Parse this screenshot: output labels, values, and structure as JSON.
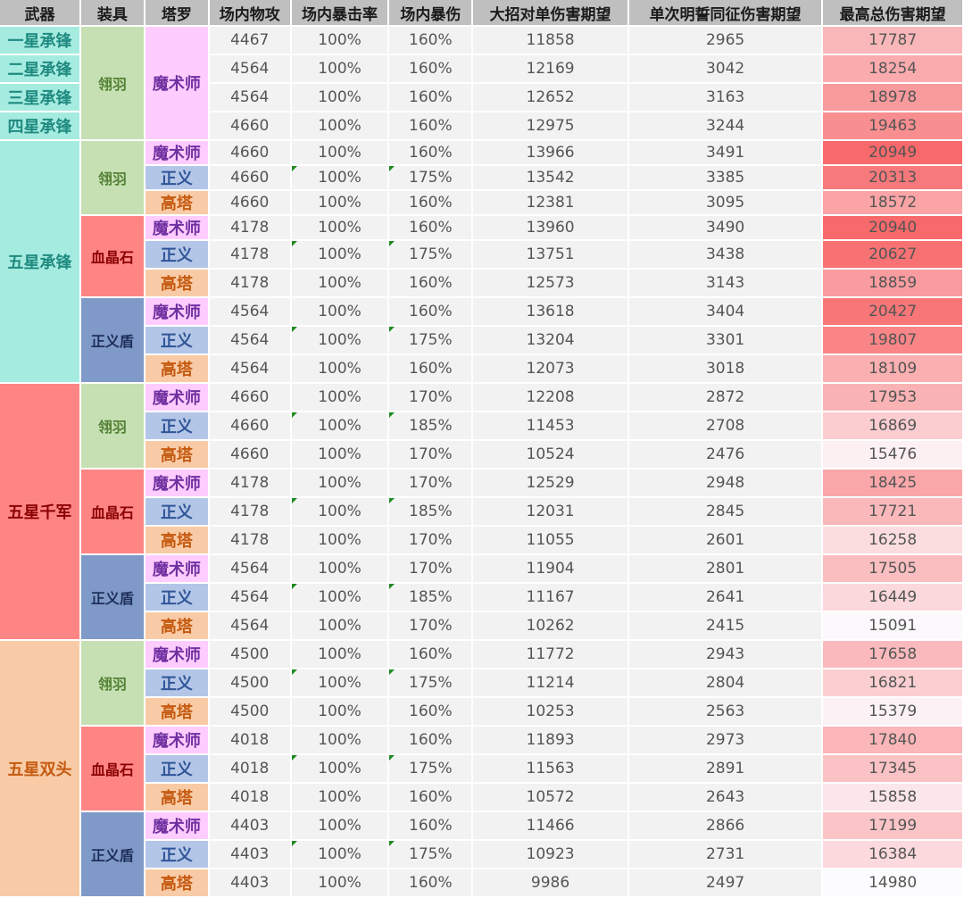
{
  "headers": [
    "武器",
    "装具",
    "塔罗",
    "场内物攻",
    "场内暴击率",
    "场内暴伤",
    "大招对单伤害期望",
    "单次明誓同征伤害期望",
    "最高总伤害期望"
  ],
  "weapon_groups": [
    {
      "label": "一星承锋",
      "rows": 1,
      "bg": "#a6ebe0",
      "fg": "#1f8a80"
    },
    {
      "label": "二星承锋",
      "rows": 1,
      "bg": "#a6ebe0",
      "fg": "#1f8a80"
    },
    {
      "label": "三星承锋",
      "rows": 1,
      "bg": "#a6ebe0",
      "fg": "#1f8a80"
    },
    {
      "label": "四星承锋",
      "rows": 1,
      "bg": "#a6ebe0",
      "fg": "#1f8a80"
    },
    {
      "label": "五星承锋",
      "rows": 9,
      "bg": "#a6ebe0",
      "fg": "#1f8a80"
    },
    {
      "label": "五星千军",
      "rows": 9,
      "bg": "#ff8585",
      "fg": "#8b0000"
    },
    {
      "label": "五星双头",
      "rows": 9,
      "bg": "#f8cba6",
      "fg": "#c55a11"
    }
  ],
  "equip_styles": {
    "翎羽": {
      "bg": "#c6e0b4",
      "fg": "#548235"
    },
    "血晶石": {
      "bg": "#ff8585",
      "fg": "#8b0000"
    },
    "正义盾": {
      "bg": "#7f9ac8",
      "fg": "#1f2f5a"
    }
  },
  "tarot_styles": {
    "魔术师": {
      "bg": "#ffccff",
      "fg": "#7030a0"
    },
    "正义": {
      "bg": "#b4c6e7",
      "fg": "#2f5597"
    },
    "高塔": {
      "bg": "#f8cba6",
      "fg": "#c55a11"
    }
  },
  "equip_groups": [
    {
      "label": "翎羽",
      "rows": 4
    },
    {
      "label": "翎羽",
      "rows": 3
    },
    {
      "label": "血晶石",
      "rows": 3
    },
    {
      "label": "正义盾",
      "rows": 3
    },
    {
      "label": "翎羽",
      "rows": 3
    },
    {
      "label": "血晶石",
      "rows": 3
    },
    {
      "label": "正义盾",
      "rows": 3
    },
    {
      "label": "翎羽",
      "rows": 3
    },
    {
      "label": "血晶石",
      "rows": 3
    },
    {
      "label": "正义盾",
      "rows": 3
    }
  ],
  "tarot_groups": [
    {
      "label": "魔术师",
      "rows": 4
    },
    {
      "label": "魔术师",
      "rows": 1
    },
    {
      "label": "正义",
      "rows": 1
    },
    {
      "label": "高塔",
      "rows": 1
    },
    {
      "label": "魔术师",
      "rows": 1
    },
    {
      "label": "正义",
      "rows": 1
    },
    {
      "label": "高塔",
      "rows": 1
    },
    {
      "label": "魔术师",
      "rows": 1
    },
    {
      "label": "正义",
      "rows": 1
    },
    {
      "label": "高塔",
      "rows": 1
    },
    {
      "label": "魔术师",
      "rows": 1
    },
    {
      "label": "正义",
      "rows": 1
    },
    {
      "label": "高塔",
      "rows": 1
    },
    {
      "label": "魔术师",
      "rows": 1
    },
    {
      "label": "正义",
      "rows": 1
    },
    {
      "label": "高塔",
      "rows": 1
    },
    {
      "label": "魔术师",
      "rows": 1
    },
    {
      "label": "正义",
      "rows": 1
    },
    {
      "label": "高塔",
      "rows": 1
    },
    {
      "label": "魔术师",
      "rows": 1
    },
    {
      "label": "正义",
      "rows": 1
    },
    {
      "label": "高塔",
      "rows": 1
    },
    {
      "label": "魔术师",
      "rows": 1
    },
    {
      "label": "正义",
      "rows": 1
    },
    {
      "label": "高塔",
      "rows": 1
    },
    {
      "label": "魔术师",
      "rows": 1
    },
    {
      "label": "正义",
      "rows": 1
    },
    {
      "label": "高塔",
      "rows": 1
    }
  ],
  "rows": [
    [
      "4467",
      "100%",
      "160%",
      "11858",
      "2965",
      "17787"
    ],
    [
      "4564",
      "100%",
      "160%",
      "12169",
      "3042",
      "18254"
    ],
    [
      "4564",
      "100%",
      "160%",
      "12652",
      "3163",
      "18978"
    ],
    [
      "4660",
      "100%",
      "160%",
      "12975",
      "3244",
      "19463"
    ],
    [
      "4660",
      "100%",
      "160%",
      "13966",
      "3491",
      "20949"
    ],
    [
      "4660",
      "100%",
      "175%",
      "13542",
      "3385",
      "20313"
    ],
    [
      "4660",
      "100%",
      "160%",
      "12381",
      "3095",
      "18572"
    ],
    [
      "4178",
      "100%",
      "160%",
      "13960",
      "3490",
      "20940"
    ],
    [
      "4178",
      "100%",
      "175%",
      "13751",
      "3438",
      "20627"
    ],
    [
      "4178",
      "100%",
      "160%",
      "12573",
      "3143",
      "18859"
    ],
    [
      "4564",
      "100%",
      "160%",
      "13618",
      "3404",
      "20427"
    ],
    [
      "4564",
      "100%",
      "175%",
      "13204",
      "3301",
      "19807"
    ],
    [
      "4564",
      "100%",
      "160%",
      "12073",
      "3018",
      "18109"
    ],
    [
      "4660",
      "100%",
      "170%",
      "12208",
      "2872",
      "17953"
    ],
    [
      "4660",
      "100%",
      "185%",
      "11453",
      "2708",
      "16869"
    ],
    [
      "4660",
      "100%",
      "170%",
      "10524",
      "2476",
      "15476"
    ],
    [
      "4178",
      "100%",
      "170%",
      "12529",
      "2948",
      "18425"
    ],
    [
      "4178",
      "100%",
      "185%",
      "12031",
      "2845",
      "17721"
    ],
    [
      "4178",
      "100%",
      "170%",
      "11055",
      "2601",
      "16258"
    ],
    [
      "4564",
      "100%",
      "170%",
      "11904",
      "2801",
      "17505"
    ],
    [
      "4564",
      "100%",
      "185%",
      "11167",
      "2641",
      "16449"
    ],
    [
      "4564",
      "100%",
      "170%",
      "10262",
      "2415",
      "15091"
    ],
    [
      "4500",
      "100%",
      "160%",
      "11772",
      "2943",
      "17658"
    ],
    [
      "4500",
      "100%",
      "175%",
      "11214",
      "2804",
      "16821"
    ],
    [
      "4500",
      "100%",
      "160%",
      "10253",
      "2563",
      "15379"
    ],
    [
      "4018",
      "100%",
      "160%",
      "11893",
      "2973",
      "17840"
    ],
    [
      "4018",
      "100%",
      "175%",
      "11563",
      "2891",
      "17345"
    ],
    [
      "4018",
      "100%",
      "160%",
      "10572",
      "2643",
      "15858"
    ],
    [
      "4403",
      "100%",
      "160%",
      "11466",
      "2866",
      "17199"
    ],
    [
      "4403",
      "100%",
      "175%",
      "10923",
      "2731",
      "16384"
    ],
    [
      "4403",
      "100%",
      "160%",
      "9986",
      "2497",
      "14980"
    ]
  ],
  "heat": {
    "min_color": "#fcfcff",
    "max_color": "#f8696b"
  }
}
